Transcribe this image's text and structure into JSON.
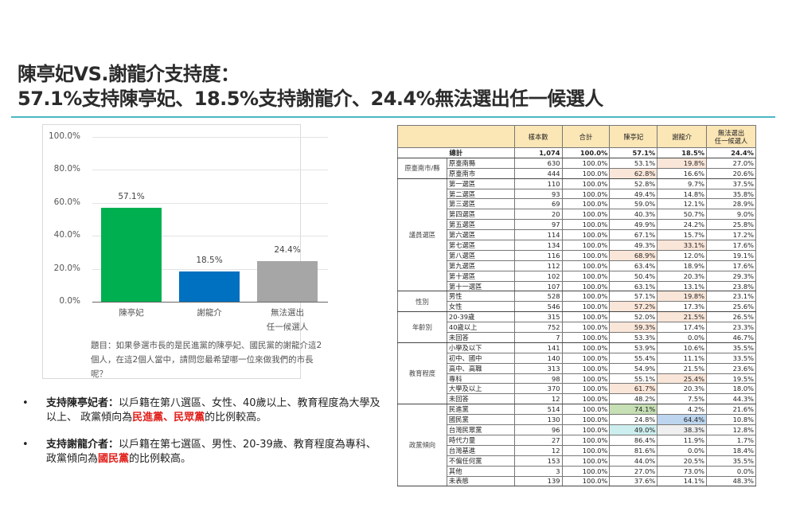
{
  "header": {
    "title_line1": "陳亭妃VS.謝龍介支持度：",
    "title_line2": "57.1%支持陳亭妃、18.5%支持謝龍介、24.4%無法選出任一候選人",
    "rule_color": "#4bb8c4"
  },
  "chart_data": {
    "type": "bar",
    "title": "",
    "categories": [
      "陳亭妃",
      "謝龍介",
      "無法選出任一候選人"
    ],
    "category_lines": [
      [
        "陳亭妃"
      ],
      [
        "謝龍介"
      ],
      [
        "無法選出",
        "任一候選人"
      ]
    ],
    "values": [
      57.1,
      18.5,
      24.4
    ],
    "value_labels": [
      "57.1%",
      "18.5%",
      "24.4%"
    ],
    "colors": [
      "#00b050",
      "#0070c0",
      "#a6a6a6"
    ],
    "yticks": [
      "100.0%",
      "80.0%",
      "60.0%",
      "40.0%",
      "20.0%",
      "0.0%"
    ],
    "ylim": [
      0,
      100
    ],
    "xlabel": "",
    "ylabel": "",
    "grid": true,
    "legend": "none"
  },
  "question": "題目：如果參選市長的是民進黨的陳亭妃、國民黨的謝龍介這2個人，在這2個人當中，請問您最希望哪一位來做我們的市長呢？",
  "bullets": [
    {
      "lead": "支持陳亭妃者：",
      "text_before": "以戶籍在第八選區、女性、40歲以上、教育程度為大學及以上、 政黨傾向為",
      "highlight": "民進黨、民眾黨",
      "text_after": "的比例較高。"
    },
    {
      "lead": "支持謝龍介者：",
      "text_before": "以戶籍在第七選區、男性、20-39歲、教育程度為專科、 政黨傾向為",
      "highlight": "國民黨",
      "text_after": "的比例較高。"
    }
  ],
  "table": {
    "headers": [
      "",
      "樣本數",
      "合計",
      "陳亭妃",
      "謝龍介",
      "無法選出\n任一候選人"
    ],
    "header_color": "#fbe6b6",
    "total": {
      "label": "總計",
      "n": "1,074",
      "sum": "100.0%",
      "chen": "57.1%",
      "hsieh": "18.5%",
      "none": "24.4%"
    },
    "groups": [
      {
        "name": "原臺南市/縣",
        "rows": [
          {
            "label": "原臺南縣",
            "n": "630",
            "sum": "100.0%",
            "chen": "53.1%",
            "hsieh": "19.8%",
            "none": "27.0%",
            "hl": [
              "",
              "orange",
              ""
            ]
          },
          {
            "label": "原臺南市",
            "n": "444",
            "sum": "100.0%",
            "chen": "62.8%",
            "hsieh": "16.6%",
            "none": "20.6%",
            "hl": [
              "orange",
              "",
              ""
            ]
          }
        ]
      },
      {
        "name": "議員選區",
        "rows": [
          {
            "label": "第一選區",
            "n": "110",
            "sum": "100.0%",
            "chen": "52.8%",
            "hsieh": "9.7%",
            "none": "37.5%",
            "hl": [
              "",
              "",
              ""
            ]
          },
          {
            "label": "第二選區",
            "n": "93",
            "sum": "100.0%",
            "chen": "49.4%",
            "hsieh": "14.8%",
            "none": "35.8%",
            "hl": [
              "",
              "",
              ""
            ]
          },
          {
            "label": "第三選區",
            "n": "69",
            "sum": "100.0%",
            "chen": "59.0%",
            "hsieh": "12.1%",
            "none": "28.9%",
            "hl": [
              "",
              "",
              ""
            ]
          },
          {
            "label": "第四選區",
            "n": "20",
            "sum": "100.0%",
            "chen": "40.3%",
            "hsieh": "50.7%",
            "none": "9.0%",
            "hl": [
              "",
              "",
              ""
            ]
          },
          {
            "label": "第五選區",
            "n": "97",
            "sum": "100.0%",
            "chen": "49.9%",
            "hsieh": "24.2%",
            "none": "25.8%",
            "hl": [
              "",
              "",
              ""
            ]
          },
          {
            "label": "第六選區",
            "n": "114",
            "sum": "100.0%",
            "chen": "67.1%",
            "hsieh": "15.7%",
            "none": "17.2%",
            "hl": [
              "",
              "",
              ""
            ]
          },
          {
            "label": "第七選區",
            "n": "134",
            "sum": "100.0%",
            "chen": "49.3%",
            "hsieh": "33.1%",
            "none": "17.6%",
            "hl": [
              "",
              "orange",
              ""
            ]
          },
          {
            "label": "第八選區",
            "n": "116",
            "sum": "100.0%",
            "chen": "68.9%",
            "hsieh": "12.0%",
            "none": "19.1%",
            "hl": [
              "orange",
              "",
              ""
            ]
          },
          {
            "label": "第九選區",
            "n": "112",
            "sum": "100.0%",
            "chen": "63.4%",
            "hsieh": "18.9%",
            "none": "17.6%",
            "hl": [
              "",
              "",
              ""
            ]
          },
          {
            "label": "第十選區",
            "n": "102",
            "sum": "100.0%",
            "chen": "50.4%",
            "hsieh": "20.3%",
            "none": "29.3%",
            "hl": [
              "",
              "",
              ""
            ]
          },
          {
            "label": "第十一選區",
            "n": "107",
            "sum": "100.0%",
            "chen": "63.1%",
            "hsieh": "13.1%",
            "none": "23.8%",
            "hl": [
              "",
              "",
              ""
            ]
          }
        ]
      },
      {
        "name": "性別",
        "rows": [
          {
            "label": "男性",
            "n": "528",
            "sum": "100.0%",
            "chen": "57.1%",
            "hsieh": "19.8%",
            "none": "23.1%",
            "hl": [
              "",
              "orange",
              ""
            ]
          },
          {
            "label": "女性",
            "n": "546",
            "sum": "100.0%",
            "chen": "57.2%",
            "hsieh": "17.3%",
            "none": "25.6%",
            "hl": [
              "orange",
              "",
              ""
            ]
          }
        ]
      },
      {
        "name": "年齡別",
        "rows": [
          {
            "label": "20-39歲",
            "n": "315",
            "sum": "100.0%",
            "chen": "52.0%",
            "hsieh": "21.5%",
            "none": "26.5%",
            "hl": [
              "",
              "orange",
              ""
            ]
          },
          {
            "label": "40歲以上",
            "n": "752",
            "sum": "100.0%",
            "chen": "59.3%",
            "hsieh": "17.4%",
            "none": "23.3%",
            "hl": [
              "orange",
              "",
              ""
            ]
          },
          {
            "label": "未回答",
            "n": "7",
            "sum": "100.0%",
            "chen": "53.3%",
            "hsieh": "0.0%",
            "none": "46.7%",
            "hl": [
              "",
              "",
              ""
            ]
          }
        ]
      },
      {
        "name": "教育程度",
        "rows": [
          {
            "label": "小學及以下",
            "n": "141",
            "sum": "100.0%",
            "chen": "53.9%",
            "hsieh": "10.6%",
            "none": "35.5%",
            "hl": [
              "",
              "",
              ""
            ]
          },
          {
            "label": "初中、國中",
            "n": "140",
            "sum": "100.0%",
            "chen": "55.4%",
            "hsieh": "11.1%",
            "none": "33.5%",
            "hl": [
              "",
              "",
              ""
            ]
          },
          {
            "label": "高中、高職",
            "n": "313",
            "sum": "100.0%",
            "chen": "54.9%",
            "hsieh": "21.5%",
            "none": "23.6%",
            "hl": [
              "",
              "",
              ""
            ]
          },
          {
            "label": "專科",
            "n": "98",
            "sum": "100.0%",
            "chen": "55.1%",
            "hsieh": "25.4%",
            "none": "19.5%",
            "hl": [
              "",
              "orange",
              ""
            ]
          },
          {
            "label": "大學及以上",
            "n": "370",
            "sum": "100.0%",
            "chen": "61.7%",
            "hsieh": "20.3%",
            "none": "18.0%",
            "hl": [
              "orange",
              "",
              ""
            ]
          },
          {
            "label": "未回答",
            "n": "12",
            "sum": "100.0%",
            "chen": "48.2%",
            "hsieh": "7.5%",
            "none": "44.3%",
            "hl": [
              "",
              "",
              ""
            ]
          }
        ]
      },
      {
        "name": "政黨傾向",
        "rows": [
          {
            "label": "民進黨",
            "n": "514",
            "sum": "100.0%",
            "chen": "74.1%",
            "hsieh": "4.2%",
            "none": "21.6%",
            "hl": [
              "green",
              "",
              ""
            ]
          },
          {
            "label": "國民黨",
            "n": "130",
            "sum": "100.0%",
            "chen": "24.8%",
            "hsieh": "64.4%",
            "none": "10.8%",
            "hl": [
              "",
              "blue",
              ""
            ]
          },
          {
            "label": "台灣民眾黨",
            "n": "96",
            "sum": "100.0%",
            "chen": "49.0%",
            "hsieh": "38.3%",
            "none": "12.8%",
            "hl": [
              "cyan",
              "gray",
              ""
            ]
          },
          {
            "label": "時代力量",
            "n": "27",
            "sum": "100.0%",
            "chen": "86.4%",
            "hsieh": "11.9%",
            "none": "1.7%",
            "hl": [
              "",
              "",
              ""
            ]
          },
          {
            "label": "台灣基進",
            "n": "12",
            "sum": "100.0%",
            "chen": "81.6%",
            "hsieh": "0.0%",
            "none": "18.4%",
            "hl": [
              "",
              "",
              ""
            ]
          },
          {
            "label": "不偏任何黨",
            "n": "153",
            "sum": "100.0%",
            "chen": "44.0%",
            "hsieh": "20.5%",
            "none": "35.5%",
            "hl": [
              "",
              "",
              ""
            ]
          },
          {
            "label": "其他",
            "n": "3",
            "sum": "100.0%",
            "chen": "27.0%",
            "hsieh": "73.0%",
            "none": "0.0%",
            "hl": [
              "",
              "",
              ""
            ]
          },
          {
            "label": "未表態",
            "n": "139",
            "sum": "100.0%",
            "chen": "37.6%",
            "hsieh": "14.1%",
            "none": "48.3%",
            "hl": [
              "",
              "",
              ""
            ]
          }
        ]
      }
    ]
  }
}
